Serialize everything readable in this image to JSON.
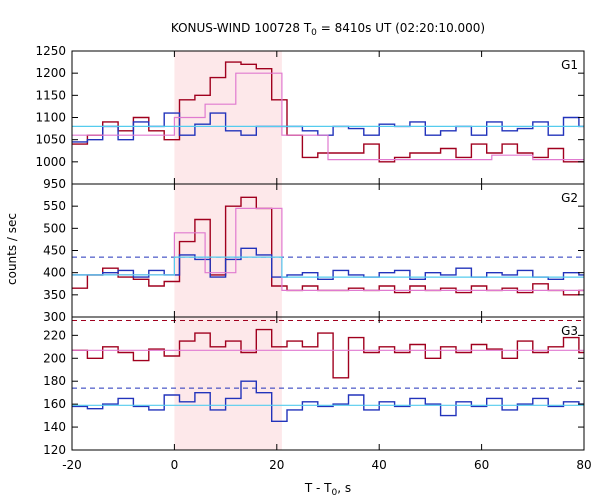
{
  "chart_data": {
    "type": "line",
    "title": "KONUS-WIND 100728 T",
    "title_sub": "0",
    "title_rest": " = 8410s UT (02:20:10.000)",
    "xlabel": "T - T",
    "xlabel_sub": "0",
    "xlabel_rest": ", s",
    "ylabel": "counts / sec",
    "xlim": [
      -20,
      80
    ],
    "xticks": [
      -20,
      0,
      20,
      40,
      60,
      80
    ],
    "shaded_interval": [
      0,
      21
    ],
    "colors": {
      "red": "#a0001e",
      "blue": "#2233bb",
      "pink": "#e07ad0",
      "cyan": "#55ccee",
      "shade": "#fde8ea"
    },
    "panels": [
      {
        "label": "G1",
        "ylim": [
          950,
          1250
        ],
        "yticks": [
          950,
          1000,
          1050,
          1100,
          1150,
          1200,
          1250
        ],
        "dashed_levels": [],
        "series": [
          {
            "color": "red",
            "type": "step",
            "x0": -20,
            "dx": 3,
            "values": [
              1040,
              1060,
              1090,
              1070,
              1100,
              1070,
              1050,
              1140,
              1150,
              1190,
              1225,
              1220,
              1210,
              1140,
              1060,
              1010,
              1020,
              1020,
              1020,
              1040,
              1000,
              1010,
              1020,
              1020,
              1030,
              1010,
              1040,
              1020,
              1040,
              1020,
              1010,
              1030,
              1000,
              1000
            ]
          },
          {
            "color": "blue",
            "type": "step",
            "x0": -20,
            "dx": 3,
            "values": [
              1045,
              1050,
              1080,
              1050,
              1090,
              1080,
              1110,
              1060,
              1085,
              1110,
              1070,
              1060,
              1080,
              1080,
              1080,
              1070,
              1060,
              1080,
              1075,
              1060,
              1085,
              1080,
              1090,
              1060,
              1070,
              1080,
              1060,
              1090,
              1070,
              1075,
              1090,
              1060,
              1100,
              1080
            ]
          },
          {
            "color": "pink",
            "type": "step",
            "edges": [
              -20,
              0,
              6,
              12,
              21,
              30,
              62,
              70,
              80
            ],
            "values": [
              1060,
              1100,
              1130,
              1200,
              1060,
              1005,
              1015,
              1005
            ]
          },
          {
            "color": "cyan",
            "type": "step",
            "edges": [
              -20,
              0,
              21,
              80
            ],
            "values": [
              1080,
              1080,
              1080
            ]
          }
        ]
      },
      {
        "label": "G2",
        "ylim": [
          300,
          600
        ],
        "yticks": [
          300,
          350,
          400,
          450,
          500,
          550
        ],
        "dashed_levels": [
          {
            "color": "blue",
            "value": 435
          }
        ],
        "series": [
          {
            "color": "red",
            "type": "step",
            "x0": -20,
            "dx": 3,
            "values": [
              365,
              395,
              410,
              390,
              385,
              370,
              380,
              470,
              520,
              395,
              550,
              570,
              545,
              370,
              360,
              370,
              360,
              360,
              365,
              360,
              370,
              355,
              370,
              360,
              365,
              355,
              370,
              360,
              365,
              355,
              375,
              360,
              350,
              360
            ]
          },
          {
            "color": "blue",
            "type": "step",
            "x0": -20,
            "dx": 3,
            "values": [
              395,
              395,
              400,
              405,
              390,
              405,
              395,
              440,
              430,
              390,
              430,
              455,
              440,
              390,
              395,
              400,
              385,
              405,
              395,
              390,
              400,
              405,
              385,
              400,
              395,
              410,
              390,
              400,
              395,
              405,
              390,
              385,
              400,
              395
            ]
          },
          {
            "color": "pink",
            "type": "step",
            "edges": [
              -20,
              0,
              6,
              12,
              21,
              80
            ],
            "values": [
              395,
              490,
              400,
              545,
              360
            ]
          },
          {
            "color": "cyan",
            "type": "step",
            "edges": [
              -20,
              0,
              21,
              80
            ],
            "values": [
              395,
              435,
              390
            ]
          }
        ]
      },
      {
        "label": "G3",
        "ylim": [
          120,
          236
        ],
        "yticks": [
          120,
          140,
          160,
          180,
          200,
          220
        ],
        "dashed_levels": [
          {
            "color": "red",
            "value": 233
          },
          {
            "color": "blue",
            "value": 174
          }
        ],
        "series": [
          {
            "color": "red",
            "type": "step",
            "x0": -20,
            "dx": 3,
            "values": [
              207,
              200,
              210,
              205,
              198,
              208,
              202,
              215,
              222,
              210,
              215,
              205,
              225,
              210,
              215,
              210,
              222,
              183,
              218,
              205,
              210,
              205,
              212,
              200,
              210,
              205,
              212,
              208,
              200,
              215,
              205,
              210,
              218,
              205
            ]
          },
          {
            "color": "blue",
            "type": "step",
            "x0": -20,
            "dx": 3,
            "values": [
              158,
              156,
              160,
              165,
              158,
              155,
              168,
              162,
              170,
              155,
              165,
              180,
              170,
              145,
              155,
              162,
              158,
              160,
              168,
              155,
              162,
              158,
              165,
              160,
              150,
              162,
              158,
              165,
              155,
              160,
              165,
              158,
              162,
              160
            ]
          },
          {
            "color": "pink",
            "type": "step",
            "edges": [
              -20,
              80
            ],
            "values": [
              207
            ]
          },
          {
            "color": "cyan",
            "type": "step",
            "edges": [
              -20,
              80
            ],
            "values": [
              159
            ]
          }
        ]
      }
    ]
  }
}
